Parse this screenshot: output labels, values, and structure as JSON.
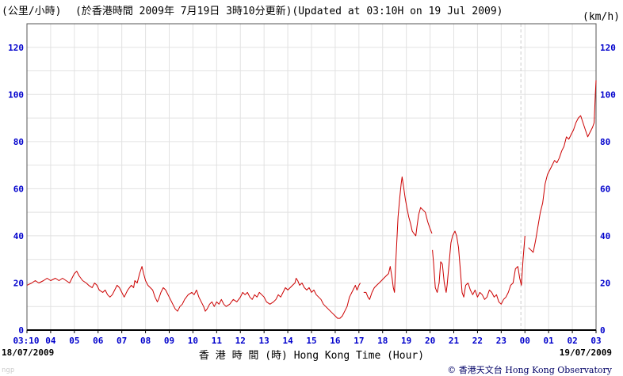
{
  "header": {
    "unit_left": "(公里/小時)",
    "updated_text": "(於香港時間 2009年 7月19日 3時10分更新)(Updated at 03:10H on 19 Jul 2009)",
    "unit_right": "(km/h)"
  },
  "footer": {
    "date_left": "18/07/2009",
    "date_right": "19/07/2009",
    "credit_symbol": "©",
    "credit_text": "香港天文台 Hong Kong Observatory",
    "watermark": "ngp"
  },
  "chart_data": {
    "type": "line",
    "xlabel": "香 港 時 間 (時) Hong Kong Time (Hour)",
    "ylabel": "(公里/小時) (km/h)",
    "x_ticks": [
      "03:10",
      "04",
      "05",
      "06",
      "07",
      "08",
      "09",
      "10",
      "11",
      "12",
      "13",
      "14",
      "15",
      "16",
      "17",
      "18",
      "19",
      "20",
      "21",
      "22",
      "23",
      "00",
      "01",
      "02",
      "03"
    ],
    "xlim": [
      0,
      24
    ],
    "ylim": [
      0,
      130
    ],
    "y_ticks": [
      0,
      20,
      40,
      60,
      80,
      100,
      120
    ],
    "grid": true,
    "day_change_at": 20.83,
    "colors": {
      "line": "#cc0000",
      "axis_text": "#0000cc",
      "grid": "#e2e2e2"
    },
    "series": [
      {
        "segments": [
          [
            [
              0,
              19
            ],
            [
              0.2,
              20
            ],
            [
              0.35,
              21
            ],
            [
              0.5,
              20
            ],
            [
              0.7,
              21
            ],
            [
              0.85,
              22
            ],
            [
              1.0,
              21
            ],
            [
              1.2,
              22
            ],
            [
              1.35,
              21
            ],
            [
              1.5,
              22
            ],
            [
              1.65,
              21
            ],
            [
              1.8,
              20
            ],
            [
              1.9,
              22
            ],
            [
              2.0,
              24
            ],
            [
              2.1,
              25
            ],
            [
              2.2,
              23
            ],
            [
              2.35,
              21
            ],
            [
              2.5,
              20
            ],
            [
              2.6,
              19
            ],
            [
              2.75,
              18
            ],
            [
              2.85,
              20
            ],
            [
              2.95,
              19
            ],
            [
              3.05,
              17
            ],
            [
              3.2,
              16
            ],
            [
              3.3,
              17
            ],
            [
              3.4,
              15
            ],
            [
              3.5,
              14
            ],
            [
              3.6,
              15
            ],
            [
              3.7,
              17
            ],
            [
              3.8,
              19
            ],
            [
              3.9,
              18
            ],
            [
              4.0,
              16
            ],
            [
              4.1,
              14
            ],
            [
              4.25,
              17
            ],
            [
              4.4,
              19
            ],
            [
              4.5,
              18
            ],
            [
              4.55,
              21
            ],
            [
              4.65,
              20
            ],
            [
              4.75,
              24
            ],
            [
              4.85,
              27
            ],
            [
              4.92,
              24
            ],
            [
              5.0,
              21
            ],
            [
              5.1,
              19
            ],
            [
              5.2,
              18
            ],
            [
              5.3,
              17
            ],
            [
              5.4,
              14
            ],
            [
              5.5,
              12
            ],
            [
              5.55,
              13
            ],
            [
              5.65,
              16
            ],
            [
              5.75,
              18
            ],
            [
              5.85,
              17
            ],
            [
              5.95,
              15
            ],
            [
              6.05,
              13
            ],
            [
              6.15,
              11
            ],
            [
              6.25,
              9
            ],
            [
              6.35,
              8
            ],
            [
              6.45,
              10
            ],
            [
              6.55,
              11
            ],
            [
              6.65,
              13
            ],
            [
              6.8,
              15
            ],
            [
              6.95,
              16
            ],
            [
              7.05,
              15
            ],
            [
              7.15,
              17
            ],
            [
              7.25,
              14
            ],
            [
              7.35,
              12
            ],
            [
              7.45,
              10
            ],
            [
              7.52,
              8
            ],
            [
              7.6,
              9
            ],
            [
              7.7,
              11
            ],
            [
              7.8,
              12
            ],
            [
              7.9,
              10
            ],
            [
              8.0,
              12
            ],
            [
              8.1,
              11
            ],
            [
              8.2,
              13
            ],
            [
              8.3,
              11
            ],
            [
              8.4,
              10
            ],
            [
              8.55,
              11
            ],
            [
              8.7,
              13
            ],
            [
              8.85,
              12
            ],
            [
              9.0,
              14
            ],
            [
              9.1,
              16
            ],
            [
              9.2,
              15
            ],
            [
              9.3,
              16
            ],
            [
              9.4,
              14
            ],
            [
              9.5,
              13
            ],
            [
              9.6,
              15
            ],
            [
              9.7,
              14
            ],
            [
              9.8,
              16
            ],
            [
              9.9,
              15
            ],
            [
              10.0,
              14
            ],
            [
              10.1,
              12
            ],
            [
              10.25,
              11
            ],
            [
              10.4,
              12
            ],
            [
              10.5,
              13
            ],
            [
              10.6,
              15
            ],
            [
              10.7,
              14
            ],
            [
              10.8,
              16
            ],
            [
              10.9,
              18
            ],
            [
              11.0,
              17
            ],
            [
              11.1,
              18
            ],
            [
              11.2,
              19
            ],
            [
              11.3,
              20
            ],
            [
              11.35,
              22
            ],
            [
              11.42,
              21
            ],
            [
              11.5,
              19
            ],
            [
              11.6,
              20
            ],
            [
              11.7,
              18
            ],
            [
              11.8,
              17
            ],
            [
              11.9,
              18
            ],
            [
              12.0,
              16
            ],
            [
              12.1,
              17
            ],
            [
              12.2,
              15
            ],
            [
              12.3,
              14
            ],
            [
              12.4,
              13
            ],
            [
              12.5,
              11
            ],
            [
              12.6,
              10
            ],
            [
              12.7,
              9
            ],
            [
              12.8,
              8
            ],
            [
              12.9,
              7
            ],
            [
              13.0,
              6
            ],
            [
              13.1,
              5
            ],
            [
              13.2,
              5
            ],
            [
              13.3,
              6
            ],
            [
              13.4,
              8
            ],
            [
              13.5,
              10
            ],
            [
              13.6,
              14
            ],
            [
              13.7,
              16
            ],
            [
              13.8,
              18
            ],
            [
              13.85,
              19
            ],
            [
              13.92,
              17
            ],
            [
              14.0,
              19
            ],
            [
              14.06,
              20
            ]
          ],
          [
            [
              14.2,
              16
            ],
            [
              14.3,
              16
            ],
            [
              14.38,
              14
            ],
            [
              14.45,
              13
            ],
            [
              14.55,
              16
            ],
            [
              14.65,
              18
            ],
            [
              14.75,
              19
            ],
            [
              14.85,
              20
            ],
            [
              14.95,
              21
            ],
            [
              15.05,
              22
            ],
            [
              15.15,
              23
            ],
            [
              15.25,
              24
            ],
            [
              15.32,
              27
            ],
            [
              15.4,
              22
            ],
            [
              15.45,
              18
            ],
            [
              15.5,
              16
            ],
            [
              15.55,
              28
            ],
            [
              15.6,
              38
            ],
            [
              15.65,
              48
            ],
            [
              15.72,
              56
            ],
            [
              15.78,
              62
            ],
            [
              15.82,
              65
            ],
            [
              15.88,
              61
            ],
            [
              15.95,
              56
            ],
            [
              16.02,
              52
            ],
            [
              16.1,
              48
            ],
            [
              16.18,
              45
            ],
            [
              16.25,
              42
            ],
            [
              16.32,
              41
            ],
            [
              16.4,
              40
            ],
            [
              16.45,
              44
            ],
            [
              16.52,
              49
            ],
            [
              16.6,
              52
            ],
            [
              16.7,
              51
            ],
            [
              16.8,
              50
            ],
            [
              16.9,
              46
            ],
            [
              17.0,
              43
            ],
            [
              17.08,
              41
            ]
          ],
          [
            [
              17.1,
              34
            ],
            [
              17.15,
              28
            ],
            [
              17.22,
              18
            ],
            [
              17.3,
              16
            ],
            [
              17.38,
              20
            ],
            [
              17.45,
              29
            ],
            [
              17.52,
              28
            ],
            [
              17.6,
              20
            ],
            [
              17.68,
              16
            ],
            [
              17.72,
              19
            ],
            [
              17.8,
              28
            ],
            [
              17.88,
              37
            ],
            [
              17.95,
              40
            ],
            [
              18.05,
              42
            ],
            [
              18.12,
              40
            ],
            [
              18.2,
              35
            ],
            [
              18.28,
              25
            ],
            [
              18.35,
              16
            ],
            [
              18.42,
              14
            ],
            [
              18.5,
              19
            ],
            [
              18.6,
              20
            ],
            [
              18.7,
              17
            ],
            [
              18.8,
              15
            ],
            [
              18.9,
              17
            ],
            [
              19.0,
              14
            ],
            [
              19.1,
              16
            ],
            [
              19.2,
              15
            ],
            [
              19.3,
              13
            ],
            [
              19.4,
              14
            ],
            [
              19.5,
              17
            ],
            [
              19.6,
              16
            ],
            [
              19.7,
              14
            ],
            [
              19.8,
              15
            ],
            [
              19.9,
              12
            ],
            [
              20.0,
              11
            ],
            [
              20.1,
              13
            ],
            [
              20.2,
              14
            ],
            [
              20.3,
              16
            ],
            [
              20.4,
              19
            ],
            [
              20.5,
              20
            ],
            [
              20.6,
              26
            ],
            [
              20.7,
              27
            ],
            [
              20.78,
              22
            ],
            [
              20.85,
              19
            ],
            [
              20.92,
              30
            ],
            [
              21.0,
              40
            ]
          ],
          [
            [
              21.15,
              35
            ],
            [
              21.25,
              34
            ],
            [
              21.35,
              33
            ],
            [
              21.45,
              38
            ],
            [
              21.55,
              44
            ],
            [
              21.65,
              50
            ],
            [
              21.75,
              54
            ],
            [
              21.85,
              62
            ],
            [
              21.95,
              66
            ],
            [
              22.05,
              68
            ],
            [
              22.15,
              70
            ],
            [
              22.25,
              72
            ],
            [
              22.35,
              71
            ],
            [
              22.45,
              73
            ],
            [
              22.55,
              76
            ],
            [
              22.65,
              78
            ],
            [
              22.75,
              82
            ],
            [
              22.85,
              81
            ],
            [
              22.95,
              83
            ],
            [
              23.05,
              85
            ],
            [
              23.15,
              88
            ],
            [
              23.25,
              90
            ],
            [
              23.35,
              91
            ],
            [
              23.45,
              88
            ],
            [
              23.55,
              85
            ],
            [
              23.65,
              82
            ],
            [
              23.75,
              84
            ],
            [
              23.85,
              86
            ],
            [
              23.92,
              88
            ],
            [
              23.97,
              100
            ],
            [
              24.0,
              106
            ]
          ]
        ]
      }
    ]
  }
}
